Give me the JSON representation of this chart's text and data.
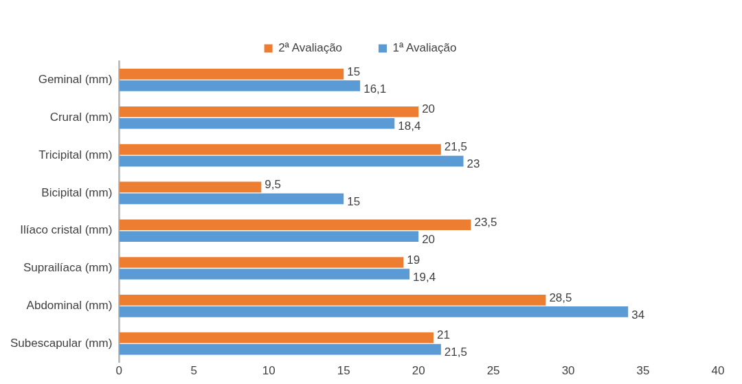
{
  "chart_data": {
    "type": "bar",
    "orientation": "horizontal",
    "categories": [
      "Geminal (mm)",
      "Crural (mm)",
      "Tricipital (mm)",
      "Bicipital (mm)",
      "Ilíaco cristal (mm)",
      "Suprailíaca (mm)",
      "Abdominal (mm)",
      "Subescapular (mm)"
    ],
    "series": [
      {
        "name": "2ª Avaliação",
        "color": "#ed7d31",
        "values": [
          15,
          20,
          21.5,
          9.5,
          23.5,
          19,
          28.5,
          21
        ],
        "value_labels": [
          "15",
          "20",
          "21,5",
          "9,5",
          "23,5",
          "19",
          "28,5",
          "21"
        ]
      },
      {
        "name": "1ª Avaliação",
        "color": "#5b9bd5",
        "values": [
          16.1,
          18.4,
          23,
          15,
          20,
          19.4,
          34,
          21.5
        ],
        "value_labels": [
          "16,1",
          "18,4",
          "23",
          "15",
          "20",
          "19,4",
          "34",
          "21,5"
        ]
      }
    ],
    "xlim": [
      0,
      40
    ],
    "xticks": [
      0,
      5,
      10,
      15,
      20,
      25,
      30,
      35,
      40
    ],
    "grid": false,
    "legend": "top"
  }
}
